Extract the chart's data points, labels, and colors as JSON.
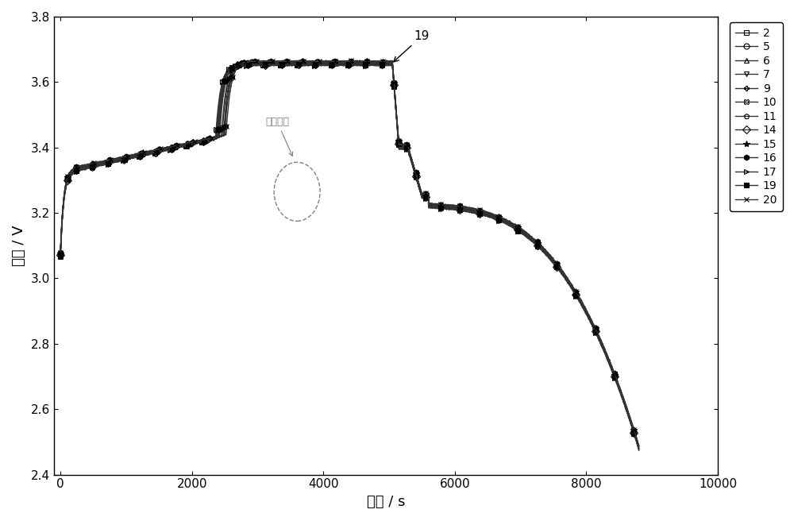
{
  "title": "",
  "xlabel": "时间 / s",
  "ylabel": "电压 / V",
  "xlim": [
    -100,
    10000
  ],
  "ylim": [
    2.4,
    3.8
  ],
  "xticks": [
    0,
    2000,
    4000,
    6000,
    8000,
    10000
  ],
  "yticks": [
    2.4,
    2.6,
    2.8,
    3.0,
    3.2,
    3.4,
    3.6,
    3.8
  ],
  "batteries": [
    "2",
    "5",
    "6",
    "7",
    "9",
    "10",
    "11",
    "14",
    "15",
    "16",
    "17",
    "19",
    "20"
  ],
  "markers": [
    "s",
    "o",
    "^",
    "v",
    "P",
    "X",
    "p",
    "D",
    "*",
    "h",
    ">",
    "s",
    "x"
  ],
  "marker_fills": [
    "none",
    "none",
    "none",
    "none",
    "none",
    "none",
    "none",
    "none",
    "black",
    "black",
    "none",
    "black",
    "none"
  ],
  "line_color": "#333333",
  "annotation_text": "局部放大",
  "label_19_text": "19",
  "figsize": [
    10.0,
    6.56
  ],
  "dpi": 100
}
